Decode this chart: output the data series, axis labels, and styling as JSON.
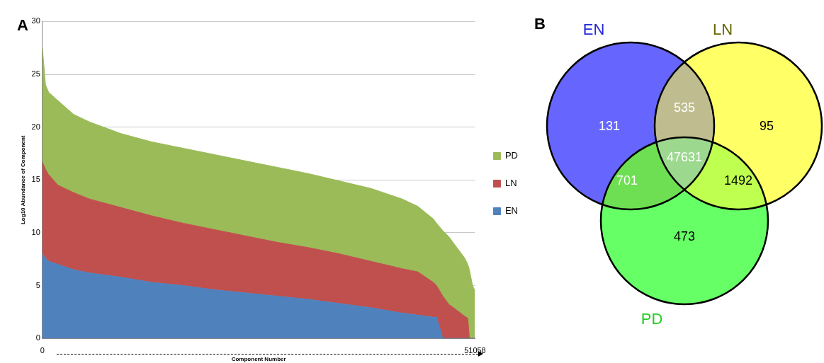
{
  "chart_data": [
    {
      "type": "area",
      "title": "A",
      "xlabel": "Component Number",
      "ylabel": "Log10 Abundance of Component",
      "stacked": true,
      "legend": "right",
      "grid": "y",
      "marker": "none",
      "x": [
        0,
        369,
        738,
        1846,
        3692,
        5538,
        9230,
        12922,
        16614,
        20306,
        23998,
        27690,
        31382,
        35074,
        38766,
        42458,
        44304,
        46150,
        46519,
        47258,
        47996,
        48365,
        49842,
        50211,
        50396,
        50765,
        51058
      ],
      "series": [
        {
          "name": "EN",
          "color": "#4f81bd",
          "values": [
            8,
            7.6,
            7.3,
            7.0,
            6.5,
            6.2,
            5.8,
            5.3,
            5.0,
            4.6,
            4.3,
            4.0,
            3.7,
            3.3,
            2.9,
            2.4,
            2.2,
            2.0,
            2.0,
            0,
            0,
            0,
            0,
            0,
            0,
            0,
            0
          ]
        },
        {
          "name": "LN",
          "color": "#c0504d",
          "values": [
            8.7,
            8.4,
            8.2,
            7.5,
            7.3,
            7.0,
            6.6,
            6.3,
            5.9,
            5.7,
            5.4,
            5.1,
            4.9,
            4.7,
            4.4,
            4.2,
            4.1,
            3.3,
            3.0,
            4.0,
            3.2,
            3.0,
            2.1,
            1.9,
            0,
            0,
            0
          ]
        },
        {
          "name": "PD",
          "color": "#9bbb59",
          "values": [
            10.8,
            8.0,
            7.8,
            8.0,
            7.4,
            7.3,
            7.0,
            7.0,
            7.1,
            7.1,
            7.1,
            7.1,
            7.0,
            6.9,
            6.9,
            6.6,
            6.2,
            6.0,
            5.9,
            6.2,
            6.4,
            6.2,
            5.5,
            5.1,
            6.5,
            5.0,
            4.5
          ]
        }
      ],
      "xlim": [
        0,
        51058
      ],
      "xticks": [
        0,
        51058
      ],
      "ylim": [
        0,
        30
      ],
      "yticks": [
        0,
        5,
        10,
        15,
        20,
        25,
        30
      ]
    },
    {
      "type": "other",
      "title": "B",
      "annotations": [
        "EN",
        "LN",
        "PD",
        "131",
        "535",
        "95",
        "701",
        "47631",
        "1492",
        "473"
      ],
      "colors": [
        "#6666ff",
        "#bfbd8f",
        "#ffff66",
        "#6ede52",
        "#9cd98f",
        "#bfff50",
        "#66ff66"
      ]
    }
  ]
}
